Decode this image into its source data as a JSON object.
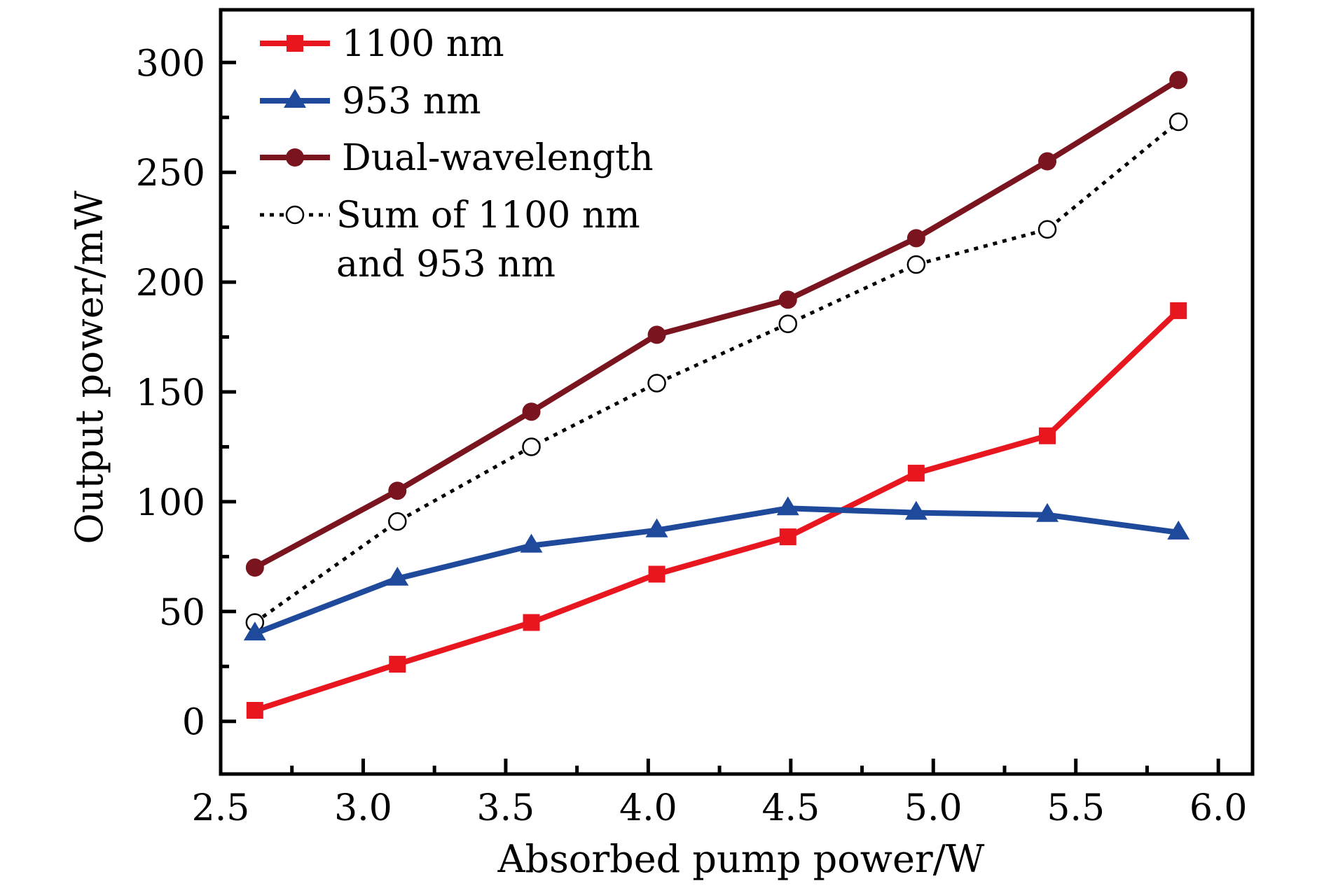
{
  "chart_data": {
    "type": "line",
    "title": "",
    "xlabel": "Absorbed pump power/W",
    "ylabel": "Output power/mW",
    "xlim": [
      2.5,
      6.12
    ],
    "ylim": [
      -24,
      324
    ],
    "xticks": [
      2.5,
      3.0,
      3.5,
      4.0,
      4.5,
      5.0,
      5.5,
      6.0
    ],
    "xtick_labels": [
      "2.5",
      "3.0",
      "3.5",
      "4.0",
      "4.5",
      "5.0",
      "5.5",
      "6.0"
    ],
    "xminor": [
      2.75,
      3.25,
      3.75,
      4.25,
      4.75,
      5.25,
      5.75
    ],
    "yticks": [
      0,
      50,
      100,
      150,
      200,
      250,
      300
    ],
    "ytick_labels": [
      "0",
      "50",
      "100",
      "150",
      "200",
      "250",
      "300"
    ],
    "yminor": [
      -25,
      25,
      75,
      125,
      175,
      225,
      275
    ],
    "grid": false,
    "legend_position": "top-left",
    "x": [
      2.62,
      3.12,
      3.59,
      4.03,
      4.49,
      4.94,
      5.4,
      5.86
    ],
    "series": [
      {
        "name": "1100 nm",
        "legend_lines": [
          "1100 nm"
        ],
        "color": "#e8161e",
        "marker": "square",
        "line_style": "solid",
        "values": [
          5,
          26,
          45,
          67,
          84,
          113,
          130,
          187
        ]
      },
      {
        "name": "953 nm",
        "legend_lines": [
          "953 nm"
        ],
        "color": "#1f4a9c",
        "marker": "triangle",
        "line_style": "solid",
        "values": [
          40,
          65,
          80,
          87,
          97,
          95,
          94,
          86
        ]
      },
      {
        "name": "Dual-wavelength",
        "legend_lines": [
          "Dual-wavelength"
        ],
        "color": "#7a1520",
        "marker": "circle",
        "line_style": "solid",
        "values": [
          70,
          105,
          141,
          176,
          192,
          220,
          255,
          292
        ]
      },
      {
        "name": "Sum of 1100 nm and 953 nm",
        "legend_lines": [
          "Sum of 1100 nm",
          "and 953 nm"
        ],
        "color": "#000000",
        "marker": "open-circle",
        "line_style": "dotted",
        "values": [
          45,
          91,
          125,
          154,
          181,
          208,
          224,
          273
        ]
      }
    ]
  }
}
